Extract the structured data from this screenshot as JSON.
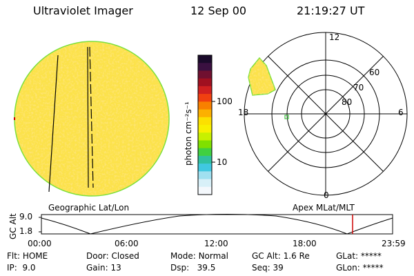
{
  "header": {
    "title": "Ultraviolet Imager",
    "date": "12 Sep 00",
    "time": "21:19:27 UT"
  },
  "colorbar": {
    "unit_label": "photon cm⁻²s⁻¹",
    "ticks": [
      "100",
      "10"
    ],
    "colors_top_to_bottom": [
      "#1a0a2a",
      "#3a1040",
      "#701030",
      "#a01020",
      "#d02020",
      "#f04010",
      "#f88000",
      "#fcb000",
      "#fce000",
      "#f8f000",
      "#c8f000",
      "#80e000",
      "#40d040",
      "#30c0a0",
      "#40c8e0",
      "#a0e0f0",
      "#d8f0f8",
      "#f4f8fc"
    ]
  },
  "left_panel": {
    "caption": "Geographic Lat/Lon",
    "disk_color": "#fce24a",
    "limb_color": "#7ce03c"
  },
  "right_panel": {
    "caption": "Apex MLat/MLT",
    "mlt_labels": [
      "12",
      "18",
      "6",
      "0"
    ],
    "lat_labels": [
      "60",
      "70",
      "80"
    ]
  },
  "timeline": {
    "ylabel": "GC Alt",
    "y_ticks": [
      "9.0",
      "1.8"
    ],
    "x_ticks": [
      "00:00",
      "06:00",
      "12:00",
      "18:00",
      "23:59"
    ],
    "marker_color": "#cc0000"
  },
  "status": {
    "row1": [
      {
        "label": "Flt:",
        "value": "HOME"
      },
      {
        "label": "Door:",
        "value": "Closed"
      },
      {
        "label": "Mode:",
        "value": "Normal"
      },
      {
        "label": "GC Alt:",
        "value": "1.6 Re"
      },
      {
        "label": "GLat:",
        "value": "*****"
      }
    ],
    "row2": [
      {
        "label": "IP:",
        "value": "9.0"
      },
      {
        "label": "Gain:",
        "value": "13"
      },
      {
        "label": "Dsp:",
        "value": "39.5"
      },
      {
        "label": "Seq:",
        "value": "39"
      },
      {
        "label": "GLon:",
        "value": "*****"
      }
    ]
  }
}
